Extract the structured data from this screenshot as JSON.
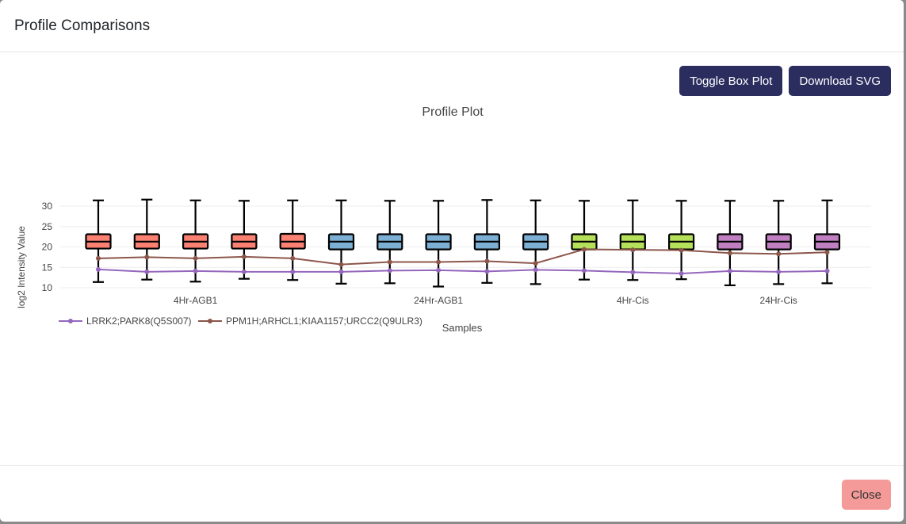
{
  "modal": {
    "title": "Profile Comparisons",
    "buttons": {
      "toggle_box_plot": "Toggle Box Plot",
      "download_svg": "Download SVG",
      "close": "Close"
    }
  },
  "colors": {
    "group_4hr_agb1": "#fa8072",
    "group_24hr_agb1": "#7bafd4",
    "group_4hr_cis": "#b5e05a",
    "group_24hr_cis": "#c07fc0",
    "series_lrrk2": "#9467bd",
    "series_ppm1h": "#8c564b",
    "button_dark": "#2b2d5f",
    "button_close": "#f49a98"
  },
  "chart_data": {
    "type": "box",
    "title": "Profile Plot",
    "xlabel": "Samples",
    "ylabel": "log2 Intensity Value",
    "ylim": [
      10,
      32
    ],
    "yticks": [
      10,
      15,
      20,
      25,
      30
    ],
    "grid": true,
    "legend_placement": "bottom-left",
    "groups": [
      {
        "label": "4Hr-AGB1",
        "color": "#fa8072",
        "samples": 5
      },
      {
        "label": "24Hr-AGB1",
        "color": "#7bafd4",
        "samples": 5
      },
      {
        "label": "4Hr-Cis",
        "color": "#b5e05a",
        "samples": 3
      },
      {
        "label": "24Hr-Cis",
        "color": "#c07fc0",
        "samples": 3
      }
    ],
    "boxes": [
      {
        "group": 0,
        "min": 11.4,
        "q1": 19.6,
        "median": 21.3,
        "q3": 23.1,
        "max": 31.4
      },
      {
        "group": 0,
        "min": 12.0,
        "q1": 19.6,
        "median": 21.3,
        "q3": 23.1,
        "max": 31.6
      },
      {
        "group": 0,
        "min": 11.5,
        "q1": 19.6,
        "median": 21.3,
        "q3": 23.1,
        "max": 31.4
      },
      {
        "group": 0,
        "min": 12.2,
        "q1": 19.6,
        "median": 21.3,
        "q3": 23.1,
        "max": 31.3
      },
      {
        "group": 0,
        "min": 11.9,
        "q1": 19.6,
        "median": 21.3,
        "q3": 23.2,
        "max": 31.4
      },
      {
        "group": 1,
        "min": 11.0,
        "q1": 19.4,
        "median": 21.3,
        "q3": 23.1,
        "max": 31.4
      },
      {
        "group": 1,
        "min": 11.1,
        "q1": 19.4,
        "median": 21.3,
        "q3": 23.1,
        "max": 31.3
      },
      {
        "group": 1,
        "min": 10.3,
        "q1": 19.4,
        "median": 21.3,
        "q3": 23.1,
        "max": 31.3
      },
      {
        "group": 1,
        "min": 11.2,
        "q1": 19.4,
        "median": 21.3,
        "q3": 23.1,
        "max": 31.5
      },
      {
        "group": 1,
        "min": 10.9,
        "q1": 19.4,
        "median": 21.3,
        "q3": 23.1,
        "max": 31.4
      },
      {
        "group": 2,
        "min": 12.0,
        "q1": 19.4,
        "median": 21.3,
        "q3": 23.1,
        "max": 31.3
      },
      {
        "group": 2,
        "min": 11.9,
        "q1": 19.4,
        "median": 21.3,
        "q3": 23.1,
        "max": 31.4
      },
      {
        "group": 2,
        "min": 12.1,
        "q1": 19.4,
        "median": 21.3,
        "q3": 23.1,
        "max": 31.3
      },
      {
        "group": 3,
        "min": 10.6,
        "q1": 19.4,
        "median": 21.3,
        "q3": 23.1,
        "max": 31.3
      },
      {
        "group": 3,
        "min": 10.9,
        "q1": 19.4,
        "median": 21.3,
        "q3": 23.1,
        "max": 31.3
      },
      {
        "group": 3,
        "min": 11.1,
        "q1": 19.4,
        "median": 21.3,
        "q3": 23.1,
        "max": 31.4
      }
    ],
    "series": [
      {
        "name": "LRRK2;PARK8(Q5S007)",
        "color": "#9467bd",
        "values": [
          14.5,
          13.9,
          14.1,
          13.9,
          13.9,
          13.9,
          14.2,
          14.3,
          14.0,
          14.4,
          14.2,
          13.8,
          13.5,
          14.1,
          13.9,
          14.1
        ]
      },
      {
        "name": "PPM1H;ARHCL1;KIAA1157;URCC2(Q9ULR3)",
        "color": "#8c564b",
        "values": [
          17.2,
          17.5,
          17.2,
          17.6,
          17.2,
          15.7,
          16.3,
          16.3,
          16.5,
          16.0,
          19.4,
          19.3,
          19.2,
          18.5,
          18.3,
          18.7
        ]
      }
    ]
  }
}
